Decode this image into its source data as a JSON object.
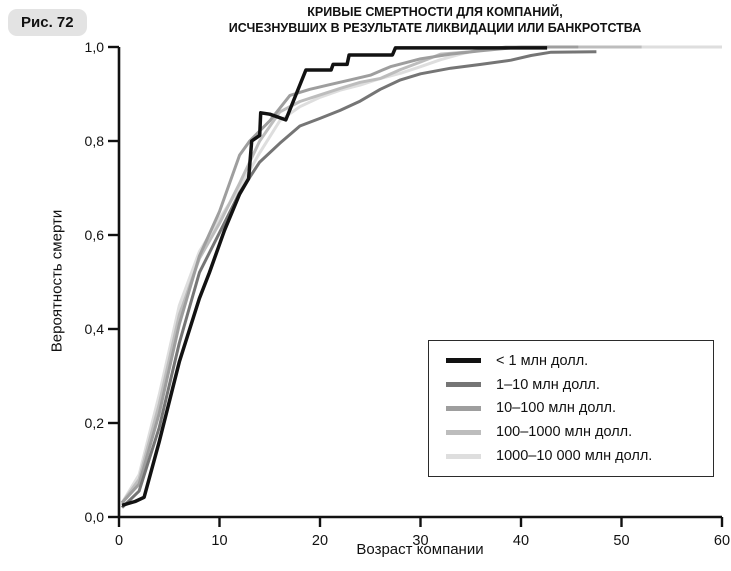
{
  "figure_label": "Рис. 72",
  "title": {
    "line1": "КРИВЫЕ СМЕРТНОСТИ ДЛЯ КОМПАНИЙ,",
    "line2": "ИСЧЕЗНУВШИХ В РЕЗУЛЬТАТЕ ЛИКВИДАЦИИ ИЛИ БАНКРОТСТВА"
  },
  "chart_data": {
    "type": "line",
    "title": "КРИВЫЕ СМЕРТНОСТИ ДЛЯ КОМПАНИЙ, ИСЧЕЗНУВШИХ В РЕЗУЛЬТАТЕ ЛИКВИДАЦИИ ИЛИ БАНКРОТСТВА",
    "xlabel": "Возраст компании",
    "ylabel": "Вероятность смерти",
    "xlim": [
      0,
      60
    ],
    "ylim": [
      0,
      1
    ],
    "grid": false,
    "legend_position": "lower right",
    "x_ticks": [
      {
        "value": 0,
        "label": "0"
      },
      {
        "value": 10,
        "label": "10"
      },
      {
        "value": 20,
        "label": "20"
      },
      {
        "value": 30,
        "label": "30"
      },
      {
        "value": 40,
        "label": "40"
      },
      {
        "value": 50,
        "label": "50"
      },
      {
        "value": 60,
        "label": "60"
      }
    ],
    "y_ticks": [
      {
        "value": 0.0,
        "label": "0,0"
      },
      {
        "value": 0.2,
        "label": "0,2"
      },
      {
        "value": 0.4,
        "label": "0,4"
      },
      {
        "value": 0.6,
        "label": "0,6"
      },
      {
        "value": 0.8,
        "label": "0,8"
      },
      {
        "value": 1.0,
        "label": "1,0"
      }
    ],
    "series": [
      {
        "name": "1000–10 000 млн долл.",
        "color": "#dedede",
        "line_width": 3,
        "points": [
          [
            0.3,
            0.03
          ],
          [
            2,
            0.09
          ],
          [
            4,
            0.26
          ],
          [
            6,
            0.45
          ],
          [
            8,
            0.565
          ],
          [
            10,
            0.635
          ],
          [
            12,
            0.7
          ],
          [
            14,
            0.775
          ],
          [
            16,
            0.843
          ],
          [
            18,
            0.873
          ],
          [
            20,
            0.893
          ],
          [
            22,
            0.908
          ],
          [
            24,
            0.919
          ],
          [
            26,
            0.933
          ],
          [
            28,
            0.944
          ],
          [
            30,
            0.958
          ],
          [
            32,
            0.973
          ],
          [
            34,
            0.985
          ],
          [
            36,
            0.995
          ],
          [
            39,
            1.0
          ],
          [
            60,
            1.0
          ]
        ]
      },
      {
        "name": "100–1000 млн долл.",
        "color": "#bdbdbd",
        "line_width": 3,
        "points": [
          [
            0.3,
            0.03
          ],
          [
            2,
            0.08
          ],
          [
            4,
            0.24
          ],
          [
            6,
            0.43
          ],
          [
            8,
            0.55
          ],
          [
            10,
            0.625
          ],
          [
            12,
            0.71
          ],
          [
            14,
            0.8
          ],
          [
            16,
            0.862
          ],
          [
            18,
            0.884
          ],
          [
            20,
            0.898
          ],
          [
            22,
            0.912
          ],
          [
            24,
            0.925
          ],
          [
            26,
            0.933
          ],
          [
            28,
            0.952
          ],
          [
            30,
            0.968
          ],
          [
            32,
            0.985
          ],
          [
            35,
            0.99
          ],
          [
            38.5,
            1.0
          ],
          [
            52,
            1.0
          ]
        ]
      },
      {
        "name": "10–100 млн долл.",
        "color": "#9e9e9e",
        "line_width": 3,
        "points": [
          [
            0.3,
            0.03
          ],
          [
            2,
            0.07
          ],
          [
            4,
            0.22
          ],
          [
            6,
            0.41
          ],
          [
            8,
            0.555
          ],
          [
            10,
            0.65
          ],
          [
            12,
            0.77
          ],
          [
            13,
            0.8
          ],
          [
            15,
            0.843
          ],
          [
            17,
            0.897
          ],
          [
            19,
            0.91
          ],
          [
            21,
            0.92
          ],
          [
            23,
            0.93
          ],
          [
            25,
            0.94
          ],
          [
            27,
            0.958
          ],
          [
            30,
            0.975
          ],
          [
            33,
            0.985
          ],
          [
            36,
            0.992
          ],
          [
            40,
            1.0
          ],
          [
            45.7,
            1.0
          ]
        ]
      },
      {
        "name": "1–10 млн долл.",
        "color": "#757575",
        "line_width": 3,
        "points": [
          [
            0.3,
            0.02
          ],
          [
            2,
            0.055
          ],
          [
            4,
            0.19
          ],
          [
            6,
            0.37
          ],
          [
            8,
            0.52
          ],
          [
            10,
            0.605
          ],
          [
            12,
            0.69
          ],
          [
            14,
            0.755
          ],
          [
            16,
            0.795
          ],
          [
            18,
            0.832
          ],
          [
            20,
            0.848
          ],
          [
            22,
            0.865
          ],
          [
            24,
            0.885
          ],
          [
            26,
            0.91
          ],
          [
            28,
            0.93
          ],
          [
            30,
            0.943
          ],
          [
            33,
            0.955
          ],
          [
            36,
            0.963
          ],
          [
            39,
            0.972
          ],
          [
            41,
            0.982
          ],
          [
            43,
            0.989
          ],
          [
            47.5,
            0.99
          ]
        ]
      },
      {
        "name": "< 1 млн долл.",
        "color": "#121212",
        "line_width": 3.5,
        "points": [
          [
            0.3,
            0.025
          ],
          [
            1.6,
            0.033
          ],
          [
            2.5,
            0.042
          ],
          [
            4,
            0.16
          ],
          [
            6,
            0.33
          ],
          [
            8,
            0.465
          ],
          [
            9,
            0.52
          ],
          [
            10.5,
            0.61
          ],
          [
            12,
            0.687
          ],
          [
            12.9,
            0.72
          ],
          [
            13.2,
            0.8
          ],
          [
            14,
            0.812
          ],
          [
            14.1,
            0.86
          ],
          [
            15,
            0.857
          ],
          [
            16.6,
            0.845
          ],
          [
            18.6,
            0.951
          ],
          [
            21.1,
            0.951
          ],
          [
            21.3,
            0.963
          ],
          [
            22.7,
            0.963
          ],
          [
            22.9,
            0.983
          ],
          [
            27.2,
            0.983
          ],
          [
            27.5,
            0.998
          ],
          [
            42.6,
            0.998
          ]
        ]
      }
    ],
    "legend_order": [
      "< 1 млн долл.",
      "1–10 млн долл.",
      "10–100 млн долл.",
      "100–1000 млн долл.",
      "1000–10 000 млн долл."
    ]
  },
  "axis_color": "#111111"
}
